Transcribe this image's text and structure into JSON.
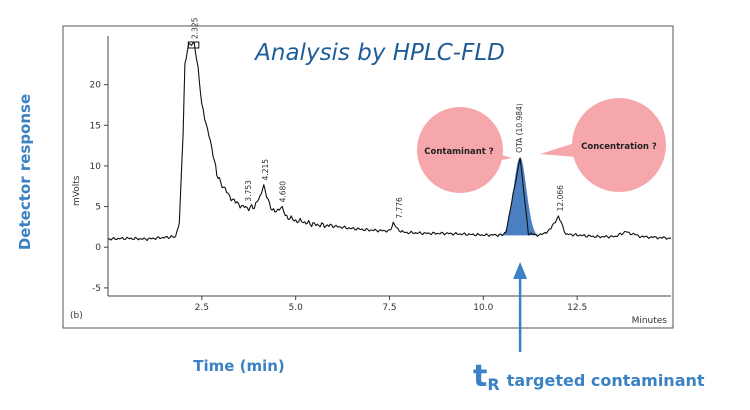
{
  "chart_data": {
    "type": "line",
    "title": "Analysis by HPLC-FLD",
    "xlabel": "Time (min)",
    "ylabel": "Detector response",
    "x_unit_label": "Minutes",
    "y_unit_label": "mVolts",
    "panel_label": "(b)",
    "xlim": [
      0,
      15
    ],
    "ylim": [
      -6,
      25
    ],
    "x_ticks": [
      2.5,
      5.0,
      7.5,
      10.0,
      12.5
    ],
    "x_tick_labels": [
      "2.5",
      "5.0",
      "7.5",
      "10.0",
      "12.5"
    ],
    "y_ticks": [
      -5,
      0,
      5,
      10,
      15,
      20
    ],
    "y_tick_labels": [
      "-5",
      "0",
      "5",
      "10",
      "15",
      "20"
    ],
    "grid": false,
    "series": [
      {
        "x": [
          0.0,
          0.5,
          1.0,
          1.5,
          1.8,
          1.9,
          2.0,
          2.05,
          2.15,
          2.3,
          2.4,
          2.5,
          2.65,
          2.8,
          2.9,
          3.0,
          3.2,
          3.4,
          3.6,
          3.75,
          3.9,
          4.05,
          4.15,
          4.3,
          4.45,
          4.6,
          4.8,
          5.0,
          5.2,
          5.5,
          6.0,
          6.5,
          7.0,
          7.5,
          7.6,
          7.8,
          8.0,
          8.5,
          9.0,
          9.5,
          10.0,
          10.5,
          10.6,
          10.98,
          11.2,
          11.4,
          11.6,
          11.8,
          12.0,
          12.2,
          12.5,
          13.0,
          13.5,
          13.8,
          14.2,
          14.6,
          15.0
        ],
        "y": [
          1.0,
          1.1,
          1.0,
          1.2,
          1.3,
          3.0,
          14.0,
          22.5,
          25.0,
          25.0,
          22.0,
          17.5,
          14.5,
          11.5,
          9.0,
          8.0,
          6.5,
          5.5,
          5.0,
          4.8,
          5.0,
          6.2,
          7.6,
          5.2,
          4.3,
          4.9,
          3.6,
          3.3,
          3.1,
          2.8,
          2.6,
          2.3,
          2.1,
          2.0,
          2.9,
          1.9,
          1.8,
          1.7,
          1.7,
          1.6,
          1.5,
          1.5,
          1.8,
          11.0,
          1.7,
          1.5,
          1.6,
          2.3,
          3.8,
          1.6,
          1.5,
          1.3,
          1.3,
          1.9,
          1.3,
          1.2,
          1.1
        ]
      }
    ],
    "highlighted_peak": {
      "x": 10.98,
      "y": 11.0,
      "color": "#4a7fc1"
    },
    "peak_labels": [
      {
        "x": 2.325,
        "y": 25.0,
        "text": "2.325"
      },
      {
        "x": 3.753,
        "y": 5.0,
        "text": "3.753"
      },
      {
        "x": 4.215,
        "y": 7.6,
        "text": "4.215"
      },
      {
        "x": 4.68,
        "y": 4.9,
        "text": "4.680"
      },
      {
        "x": 7.776,
        "y": 2.9,
        "text": "7.776"
      },
      {
        "x": 10.98,
        "y": 11.0,
        "text": "OTA (10.984)"
      },
      {
        "x": 12.066,
        "y": 3.8,
        "text": "12.066"
      }
    ],
    "annotations": {
      "contaminant": "Contaminant ?",
      "concentration": "Concentration ?",
      "tr_symbol": "t",
      "tr_subscript": "R",
      "tr_text": "targeted contaminant"
    },
    "colors": {
      "trace": "#111111",
      "bubble": "#f6a7ab",
      "accent": "#3a82c4",
      "title": "#1f5d98"
    }
  }
}
